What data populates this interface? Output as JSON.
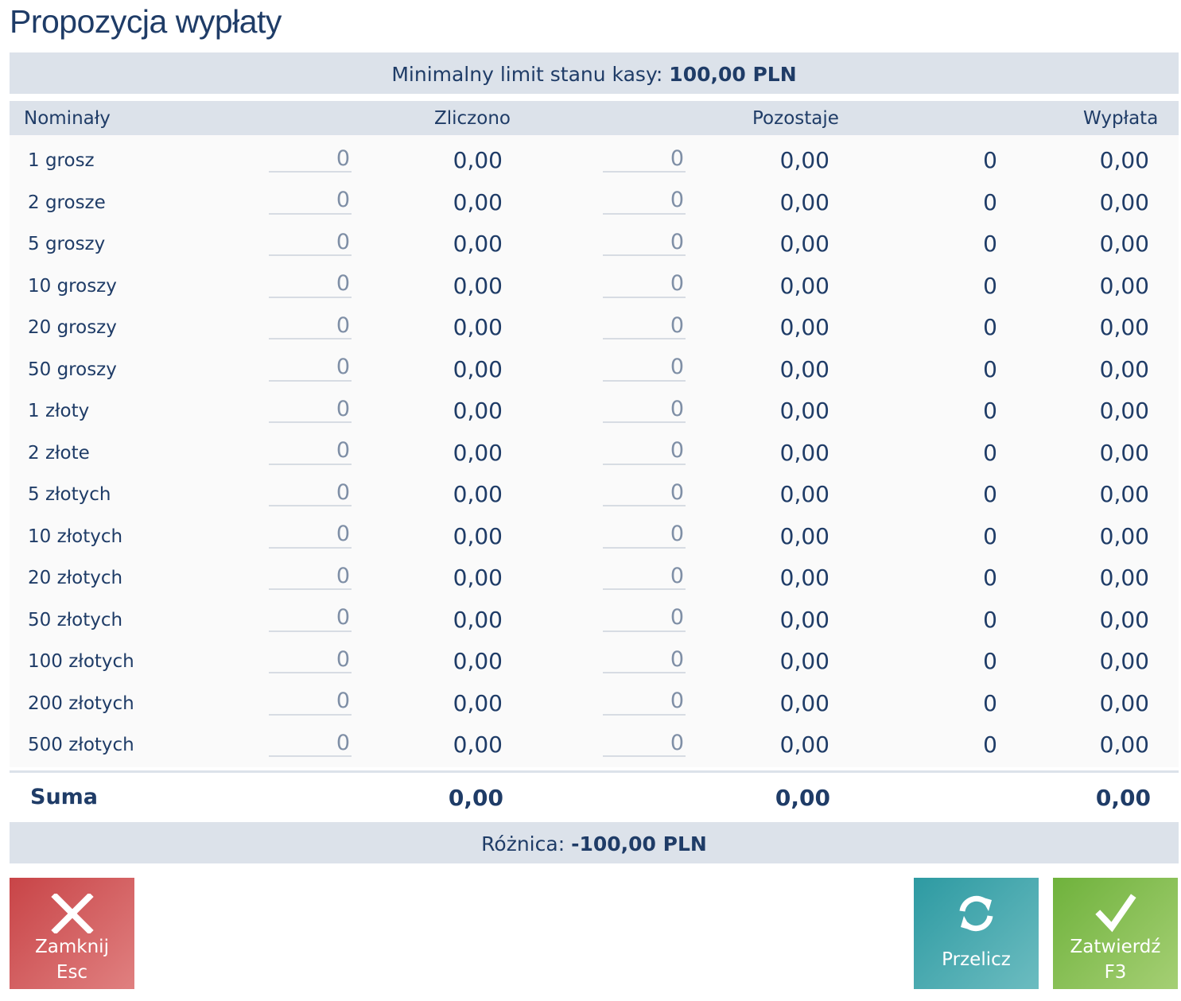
{
  "title": "Propozycja wypłaty",
  "limit": {
    "label": "Minimalny limit stanu kasy:",
    "value": "100,00 PLN"
  },
  "columns": {
    "nominaly": "Nominały",
    "zliczono": "Zliczono",
    "pozostaje": "Pozostaje",
    "wyplata": "Wypłata"
  },
  "rows": [
    {
      "name": "1 grosz",
      "count": "0",
      "counted": "0,00",
      "remain_count": "0",
      "remain": "0,00",
      "pay_count": "0",
      "pay": "0,00"
    },
    {
      "name": "2 grosze",
      "count": "0",
      "counted": "0,00",
      "remain_count": "0",
      "remain": "0,00",
      "pay_count": "0",
      "pay": "0,00"
    },
    {
      "name": "5 groszy",
      "count": "0",
      "counted": "0,00",
      "remain_count": "0",
      "remain": "0,00",
      "pay_count": "0",
      "pay": "0,00"
    },
    {
      "name": "10 groszy",
      "count": "0",
      "counted": "0,00",
      "remain_count": "0",
      "remain": "0,00",
      "pay_count": "0",
      "pay": "0,00"
    },
    {
      "name": "20 groszy",
      "count": "0",
      "counted": "0,00",
      "remain_count": "0",
      "remain": "0,00",
      "pay_count": "0",
      "pay": "0,00"
    },
    {
      "name": "50 groszy",
      "count": "0",
      "counted": "0,00",
      "remain_count": "0",
      "remain": "0,00",
      "pay_count": "0",
      "pay": "0,00"
    },
    {
      "name": "1 złoty",
      "count": "0",
      "counted": "0,00",
      "remain_count": "0",
      "remain": "0,00",
      "pay_count": "0",
      "pay": "0,00"
    },
    {
      "name": "2 złote",
      "count": "0",
      "counted": "0,00",
      "remain_count": "0",
      "remain": "0,00",
      "pay_count": "0",
      "pay": "0,00"
    },
    {
      "name": "5 złotych",
      "count": "0",
      "counted": "0,00",
      "remain_count": "0",
      "remain": "0,00",
      "pay_count": "0",
      "pay": "0,00"
    },
    {
      "name": "10 złotych",
      "count": "0",
      "counted": "0,00",
      "remain_count": "0",
      "remain": "0,00",
      "pay_count": "0",
      "pay": "0,00"
    },
    {
      "name": "20 złotych",
      "count": "0",
      "counted": "0,00",
      "remain_count": "0",
      "remain": "0,00",
      "pay_count": "0",
      "pay": "0,00"
    },
    {
      "name": "50 złotych",
      "count": "0",
      "counted": "0,00",
      "remain_count": "0",
      "remain": "0,00",
      "pay_count": "0",
      "pay": "0,00"
    },
    {
      "name": "100 złotych",
      "count": "0",
      "counted": "0,00",
      "remain_count": "0",
      "remain": "0,00",
      "pay_count": "0",
      "pay": "0,00"
    },
    {
      "name": "200 złotych",
      "count": "0",
      "counted": "0,00",
      "remain_count": "0",
      "remain": "0,00",
      "pay_count": "0",
      "pay": "0,00"
    },
    {
      "name": "500 złotych",
      "count": "0",
      "counted": "0,00",
      "remain_count": "0",
      "remain": "0,00",
      "pay_count": "0",
      "pay": "0,00"
    }
  ],
  "sum": {
    "label": "Suma",
    "counted": "0,00",
    "remain": "0,00",
    "pay": "0,00"
  },
  "difference": {
    "label": "Różnica:",
    "value": "-100,00 PLN"
  },
  "buttons": {
    "close": {
      "label": "Zamknij",
      "shortcut": "Esc",
      "icon": "close-icon"
    },
    "recalc": {
      "label": "Przelicz",
      "icon": "refresh-icon"
    },
    "confirm": {
      "label": "Zatwierdź",
      "shortcut": "F3",
      "icon": "check-icon"
    }
  },
  "colors": {
    "text": "#1f3c67",
    "bar": "#dce2ea",
    "close": "#c84447",
    "recalc": "#2d9aa2",
    "confirm": "#6fb23c"
  }
}
